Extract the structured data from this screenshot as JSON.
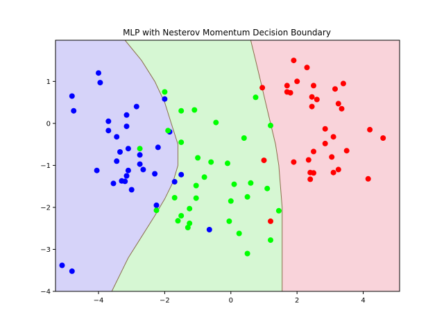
{
  "chart_data": {
    "type": "scatter",
    "title": "MLP with Nesterov Momentum Decision Boundary",
    "xlabel": "",
    "ylabel": "",
    "xlim": [
      -5.3,
      5.1
    ],
    "ylim": [
      -4.0,
      1.98
    ],
    "x_ticks": [
      {
        "value": -4,
        "label": "−4"
      },
      {
        "value": -2,
        "label": "−2"
      },
      {
        "value": 0,
        "label": "0"
      },
      {
        "value": 2,
        "label": "2"
      },
      {
        "value": 4,
        "label": "4"
      }
    ],
    "y_ticks": [
      {
        "value": 1,
        "label": "1"
      },
      {
        "value": 0,
        "label": "0"
      },
      {
        "value": -1,
        "label": "−1"
      },
      {
        "value": -2,
        "label": "−2"
      },
      {
        "value": -3,
        "label": "−3"
      },
      {
        "value": -4,
        "label": "−4"
      }
    ],
    "grid": false,
    "regions": [
      {
        "class": "blue",
        "color": "#d6d3f9"
      },
      {
        "class": "green",
        "color": "#d6f7d3"
      },
      {
        "class": "red",
        "color": "#f9d3da"
      }
    ],
    "boundaries": [
      {
        "between": [
          "blue",
          "green"
        ],
        "color": "#8a6d4a",
        "points": [
          [
            -3.2,
            1.98
          ],
          [
            -2.7,
            1.5
          ],
          [
            -2.3,
            1.0
          ],
          [
            -2.0,
            0.5
          ],
          [
            -1.8,
            0.0
          ],
          [
            -1.6,
            -0.5
          ],
          [
            -1.6,
            -1.0
          ],
          [
            -1.75,
            -1.4
          ],
          [
            -2.0,
            -1.8
          ],
          [
            -2.3,
            -2.2
          ],
          [
            -2.7,
            -2.7
          ],
          [
            -3.1,
            -3.2
          ],
          [
            -3.6,
            -4.0
          ]
        ]
      },
      {
        "between": [
          "green",
          "red"
        ],
        "color": "#8a6d4a",
        "points": [
          [
            0.6,
            1.98
          ],
          [
            0.75,
            1.5
          ],
          [
            0.9,
            1.0
          ],
          [
            1.05,
            0.5
          ],
          [
            1.2,
            0.0
          ],
          [
            1.35,
            -0.5
          ],
          [
            1.45,
            -1.0
          ],
          [
            1.5,
            -1.5
          ],
          [
            1.55,
            -2.0
          ],
          [
            1.55,
            -2.5
          ],
          [
            1.55,
            -3.0
          ],
          [
            1.55,
            -3.5
          ],
          [
            1.55,
            -4.0
          ]
        ]
      }
    ],
    "series": [
      {
        "color": "#0000ff",
        "points": [
          [
            -4.8,
            0.65
          ],
          [
            -4.75,
            0.3
          ],
          [
            -4.0,
            1.2
          ],
          [
            -3.95,
            0.97
          ],
          [
            -3.7,
            0.05
          ],
          [
            -3.7,
            -0.17
          ],
          [
            -3.45,
            -0.32
          ],
          [
            -3.15,
            0.2
          ],
          [
            -3.15,
            -0.07
          ],
          [
            -2.85,
            0.4
          ],
          [
            -3.35,
            -0.68
          ],
          [
            -3.45,
            -0.9
          ],
          [
            -3.1,
            -0.6
          ],
          [
            -2.75,
            -0.75
          ],
          [
            -2.75,
            -0.97
          ],
          [
            -3.1,
            -1.12
          ],
          [
            -3.15,
            -1.25
          ],
          [
            -2.65,
            -1.1
          ],
          [
            -3.55,
            -1.43
          ],
          [
            -3.3,
            -1.37
          ],
          [
            -3.2,
            -1.38
          ],
          [
            -3.0,
            -1.58
          ],
          [
            -4.05,
            -1.12
          ],
          [
            -2.3,
            -1.2
          ],
          [
            -2.2,
            -0.57
          ],
          [
            -2.25,
            -1.95
          ],
          [
            -2.0,
            0.58
          ],
          [
            -1.85,
            -0.2
          ],
          [
            -1.5,
            -1.22
          ],
          [
            -1.7,
            -1.39
          ],
          [
            -0.65,
            -2.53
          ],
          [
            -5.1,
            -3.38
          ],
          [
            -4.8,
            -3.52
          ]
        ]
      },
      {
        "color": "#00ff00",
        "points": [
          [
            -2.0,
            0.75
          ],
          [
            -1.5,
            0.3
          ],
          [
            -1.1,
            0.32
          ],
          [
            -0.45,
            0.02
          ],
          [
            -1.9,
            -0.17
          ],
          [
            -1.5,
            -0.45
          ],
          [
            -2.75,
            -0.6
          ],
          [
            -1.0,
            -0.82
          ],
          [
            -0.6,
            -0.92
          ],
          [
            -0.1,
            -0.95
          ],
          [
            0.4,
            -0.35
          ],
          [
            0.75,
            0.62
          ],
          [
            1.2,
            -0.05
          ],
          [
            -0.8,
            -1.28
          ],
          [
            -1.05,
            -1.48
          ],
          [
            0.1,
            -1.45
          ],
          [
            0.6,
            -1.42
          ],
          [
            -1.7,
            -1.77
          ],
          [
            -1.05,
            -1.78
          ],
          [
            0.0,
            -1.85
          ],
          [
            0.5,
            -1.75
          ],
          [
            1.1,
            -1.55
          ],
          [
            -2.25,
            -2.07
          ],
          [
            -1.25,
            -2.03
          ],
          [
            -1.5,
            -2.2
          ],
          [
            1.45,
            -2.08
          ],
          [
            -1.6,
            -2.32
          ],
          [
            -1.25,
            -2.38
          ],
          [
            -1.3,
            -2.48
          ],
          [
            -0.05,
            -2.33
          ],
          [
            0.25,
            -2.62
          ],
          [
            1.2,
            -2.78
          ],
          [
            0.5,
            -3.1
          ]
        ]
      },
      {
        "color": "#ff0000",
        "points": [
          [
            1.9,
            1.5
          ],
          [
            2.3,
            1.33
          ],
          [
            2.0,
            1.0
          ],
          [
            1.7,
            0.9
          ],
          [
            2.5,
            0.9
          ],
          [
            3.4,
            0.95
          ],
          [
            0.95,
            0.85
          ],
          [
            3.15,
            0.82
          ],
          [
            1.7,
            0.75
          ],
          [
            1.8,
            0.73
          ],
          [
            2.45,
            0.63
          ],
          [
            2.6,
            0.57
          ],
          [
            3.25,
            0.47
          ],
          [
            2.45,
            0.4
          ],
          [
            3.35,
            0.35
          ],
          [
            2.85,
            -0.13
          ],
          [
            4.2,
            -0.15
          ],
          [
            3.1,
            -0.32
          ],
          [
            4.6,
            -0.35
          ],
          [
            2.85,
            -0.48
          ],
          [
            2.5,
            -0.67
          ],
          [
            3.5,
            -0.65
          ],
          [
            3.05,
            -0.8
          ],
          [
            1.0,
            -0.88
          ],
          [
            1.9,
            -0.92
          ],
          [
            2.35,
            -0.87
          ],
          [
            3.25,
            -1.1
          ],
          [
            2.4,
            -1.17
          ],
          [
            2.5,
            -1.18
          ],
          [
            3.1,
            -1.17
          ],
          [
            2.4,
            -1.33
          ],
          [
            4.15,
            -1.32
          ],
          [
            1.2,
            -2.33
          ]
        ]
      }
    ]
  }
}
